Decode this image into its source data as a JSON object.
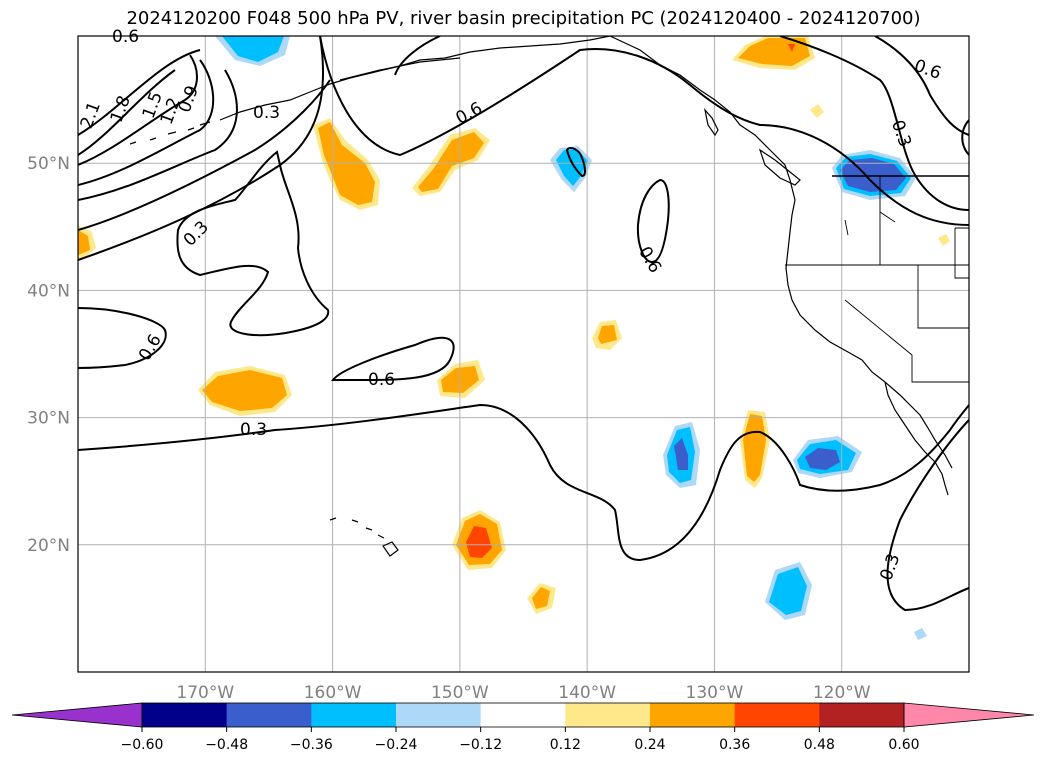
{
  "title": "2024120200 F048 500 hPa PV, river basin precipitation PC (2024120400 - 2024120700)",
  "map": {
    "lon_range": [
      -180,
      -110
    ],
    "lat_range": [
      10,
      60
    ],
    "lat_ticks": [
      {
        "value": 50,
        "label": "50°N"
      },
      {
        "value": 40,
        "label": "40°N"
      },
      {
        "value": 30,
        "label": "30°N"
      },
      {
        "value": 20,
        "label": "20°N"
      }
    ],
    "lon_ticks": [
      {
        "value": -170,
        "label": "170°W"
      },
      {
        "value": -160,
        "label": "160°W"
      },
      {
        "value": -150,
        "label": "150°W"
      },
      {
        "value": -140,
        "label": "140°W"
      },
      {
        "value": -130,
        "label": "130°W"
      },
      {
        "value": -120,
        "label": "120°W"
      }
    ],
    "grid": true,
    "pv_contour_labels": [
      "0.6",
      "2.1",
      "1.8",
      "1.5",
      "1.2",
      "0.9",
      "0.3",
      "0.6",
      "0.3",
      "0.6",
      "0.6",
      "0.3",
      "0.6",
      "0.6",
      "0.3",
      "0.3"
    ]
  },
  "colorbar": {
    "levels": [
      "−0.60",
      "−0.48",
      "−0.36",
      "−0.24",
      "−0.12",
      "0.12",
      "0.24",
      "0.36",
      "0.48",
      "0.60"
    ],
    "colors": [
      "#9932cc",
      "#00008b",
      "#3a5fcd",
      "#00bfff",
      "#add8f7",
      "#ffffff",
      "#ffe88a",
      "#ffa500",
      "#ff4500",
      "#b22222",
      "#ff88aa"
    ],
    "extend": "both"
  },
  "colors": {
    "contour": "#000000",
    "coast": "#000000",
    "grid": "#b0b0b0",
    "tick_label": "#808080"
  }
}
